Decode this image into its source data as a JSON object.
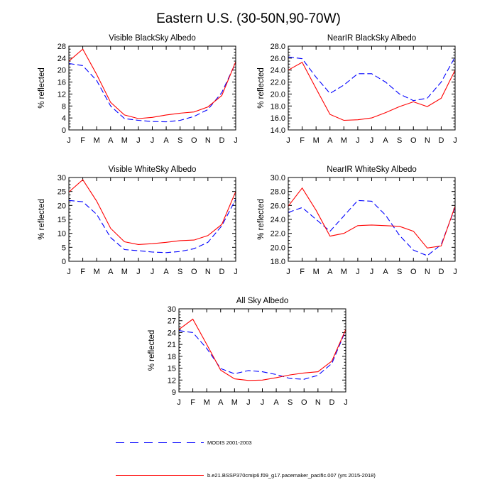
{
  "figure_title": "Eastern U.S. (30-50N,90-70W)",
  "ylabel": "% reflected",
  "months": [
    "J",
    "F",
    "M",
    "A",
    "M",
    "J",
    "J",
    "A",
    "S",
    "O",
    "N",
    "D",
    "J"
  ],
  "legend": {
    "modis": {
      "label": "MODIS 2001-2003",
      "color": "#0000ff",
      "style": "dashed"
    },
    "model": {
      "label": "b.e21.BSSP370cmip6.f09_g17.pacemaker_pacific.007 (yrs 2015-2018)",
      "color": "#ff0000",
      "style": "solid"
    }
  },
  "chart_data": [
    {
      "type": "line",
      "title": "Visible BlackSky Albedo",
      "xlabel": "",
      "ylabel": "% reflected",
      "ylim": [
        0,
        28
      ],
      "yticks": [
        0,
        4,
        8,
        12,
        16,
        20,
        24,
        28
      ],
      "ytick_labels": [
        "0",
        "4",
        "8",
        "12",
        "16",
        "20",
        "24",
        "28"
      ],
      "categories": [
        "J",
        "F",
        "M",
        "A",
        "M",
        "J",
        "J",
        "A",
        "S",
        "O",
        "N",
        "D",
        "J"
      ],
      "series": [
        {
          "name": "MODIS 2001-2003",
          "values": [
            22.2,
            21.5,
            16.5,
            8.0,
            3.8,
            3.2,
            2.8,
            2.7,
            3.2,
            4.5,
            6.8,
            12.5,
            22.5
          ]
        },
        {
          "name": "b.e21.BSSP370cmip6.f09_g17.pacemaker_pacific.007 (yrs 2015-2018)",
          "values": [
            23.0,
            27.0,
            18.5,
            9.2,
            5.0,
            3.8,
            4.2,
            5.0,
            5.6,
            6.0,
            7.7,
            11.5,
            22.8
          ]
        }
      ]
    },
    {
      "type": "line",
      "title": "NearIR BlackSky Albedo",
      "xlabel": "",
      "ylabel": "% reflected",
      "ylim": [
        14,
        28
      ],
      "yticks": [
        14,
        16,
        18,
        20,
        22,
        24,
        26,
        28
      ],
      "ytick_labels": [
        "14.0",
        "16.0",
        "18.0",
        "20.0",
        "22.0",
        "24.0",
        "26.0",
        "28.0"
      ],
      "categories": [
        "J",
        "F",
        "M",
        "A",
        "M",
        "J",
        "J",
        "A",
        "S",
        "O",
        "N",
        "D",
        "J"
      ],
      "series": [
        {
          "name": "MODIS 2001-2003",
          "values": [
            26.2,
            25.9,
            22.8,
            20.1,
            21.5,
            23.4,
            23.4,
            22.0,
            20.0,
            18.9,
            19.3,
            22.0,
            26.2
          ]
        },
        {
          "name": "b.e21.BSSP370cmip6.f09_g17.pacemaker_pacific.007 (yrs 2015-2018)",
          "values": [
            24.0,
            25.3,
            20.9,
            16.6,
            15.6,
            15.7,
            16.0,
            16.9,
            17.9,
            18.7,
            17.9,
            19.3,
            24.0
          ]
        }
      ]
    },
    {
      "type": "line",
      "title": "Visible WhiteSky Albedo",
      "xlabel": "",
      "ylabel": "% reflected",
      "ylim": [
        0,
        30
      ],
      "yticks": [
        0,
        5,
        10,
        15,
        20,
        25,
        30
      ],
      "ytick_labels": [
        "0",
        "5",
        "10",
        "15",
        "20",
        "25",
        "30"
      ],
      "categories": [
        "J",
        "F",
        "M",
        "A",
        "M",
        "J",
        "J",
        "A",
        "S",
        "O",
        "N",
        "D",
        "J"
      ],
      "series": [
        {
          "name": "MODIS 2001-2003",
          "values": [
            21.8,
            21.3,
            16.8,
            8.5,
            4.2,
            3.8,
            3.3,
            3.1,
            3.5,
            4.5,
            6.8,
            12.7,
            22.2
          ]
        },
        {
          "name": "b.e21.BSSP370cmip6.f09_g17.pacemaker_pacific.007 (yrs 2015-2018)",
          "values": [
            24.8,
            29.2,
            21.5,
            11.8,
            7.0,
            6.0,
            6.3,
            6.8,
            7.4,
            7.6,
            9.2,
            13.2,
            25.0
          ]
        }
      ]
    },
    {
      "type": "line",
      "title": "NearIR WhiteSky Albedo",
      "xlabel": "",
      "ylabel": "% reflected",
      "ylim": [
        18,
        30
      ],
      "yticks": [
        18,
        20,
        22,
        24,
        26,
        28,
        30
      ],
      "ytick_labels": [
        "18.0",
        "20.0",
        "22.0",
        "24.0",
        "26.0",
        "28.0",
        "30.0"
      ],
      "categories": [
        "J",
        "F",
        "M",
        "A",
        "M",
        "J",
        "J",
        "A",
        "S",
        "O",
        "N",
        "D",
        "J"
      ],
      "series": [
        {
          "name": "MODIS 2001-2003",
          "values": [
            25.0,
            25.7,
            24.0,
            22.3,
            24.5,
            26.7,
            26.6,
            24.6,
            21.7,
            19.6,
            18.8,
            20.4,
            25.7
          ]
        },
        {
          "name": "b.e21.BSSP370cmip6.f09_g17.pacemaker_pacific.007 (yrs 2015-2018)",
          "values": [
            25.9,
            28.5,
            25.3,
            21.6,
            22.0,
            23.1,
            23.2,
            23.1,
            23.0,
            22.3,
            19.9,
            20.2,
            25.9
          ]
        }
      ]
    },
    {
      "type": "line",
      "title": "All Sky Albedo",
      "xlabel": "",
      "ylabel": "% reflected",
      "ylim": [
        9,
        30
      ],
      "yticks": [
        9,
        12,
        15,
        18,
        21,
        24,
        27,
        30
      ],
      "ytick_labels": [
        "9",
        "12",
        "15",
        "18",
        "21",
        "24",
        "27",
        "30"
      ],
      "categories": [
        "J",
        "F",
        "M",
        "A",
        "M",
        "J",
        "J",
        "A",
        "S",
        "O",
        "N",
        "D",
        "J"
      ],
      "series": [
        {
          "name": "MODIS 2001-2003",
          "values": [
            24.5,
            24.0,
            20.0,
            14.9,
            13.6,
            14.4,
            14.1,
            13.4,
            12.4,
            12.2,
            13.2,
            16.2,
            24.6
          ]
        },
        {
          "name": "b.e21.BSSP370cmip6.f09_g17.pacemaker_pacific.007 (yrs 2015-2018)",
          "values": [
            24.8,
            27.4,
            21.0,
            14.5,
            12.3,
            11.9,
            12.0,
            12.6,
            13.3,
            13.8,
            14.1,
            16.8,
            24.8
          ]
        }
      ]
    }
  ]
}
